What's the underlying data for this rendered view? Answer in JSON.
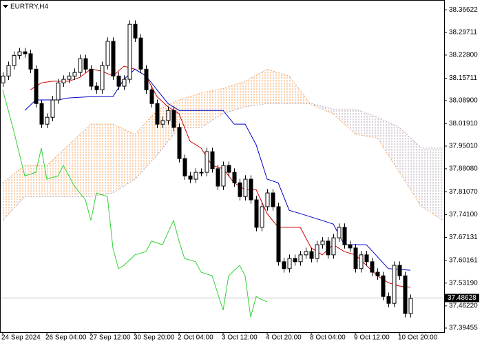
{
  "chart_data": {
    "type": "candlestick",
    "title": "EURTRY,H4",
    "categories": [
      "24 Sep 2024",
      null,
      null,
      null,
      null,
      null,
      null,
      null,
      "26 Sep 04:00",
      null,
      null,
      null,
      null,
      null,
      null,
      null,
      "27 Sep 12:00",
      null,
      null,
      null,
      null,
      null,
      null,
      null,
      "30 Sep 20:00",
      null,
      null,
      null,
      null,
      null,
      null,
      null,
      "2 Oct 04:00",
      null,
      null,
      null,
      null,
      null,
      null,
      null,
      "3 Oct 12:00",
      null,
      null,
      null,
      null,
      null,
      null,
      null,
      "4 Oct 20:00",
      null,
      null,
      null,
      null,
      null,
      null,
      null,
      "8 Oct 04:00",
      null,
      null,
      null,
      null,
      null,
      null,
      null,
      "9 Oct 12:00",
      null,
      null,
      null,
      null,
      null,
      null,
      null,
      "10 Oct 20:00",
      null,
      null
    ],
    "open": [
      38.143,
      38.164,
      38.196,
      38.227,
      38.238,
      38.232,
      38.185,
      38.08,
      38.017,
      38.038,
      38.091,
      38.143,
      38.154,
      38.164,
      38.175,
      38.217,
      38.185,
      38.133,
      38.122,
      38.196,
      38.27,
      38.164,
      38.133,
      38.154,
      38.322,
      38.28,
      38.185,
      38.122,
      38.08,
      38.017,
      38.028,
      38.059,
      38.007,
      37.912,
      37.859,
      37.849,
      37.87,
      37.87,
      37.933,
      37.881,
      37.828,
      37.891,
      37.87,
      37.838,
      37.796,
      37.849,
      37.786,
      37.702,
      37.765,
      37.807,
      37.765,
      37.597,
      37.576,
      37.607,
      37.597,
      37.618,
      37.628,
      37.607,
      37.649,
      37.66,
      37.618,
      37.67,
      37.702,
      37.649,
      37.639,
      37.576,
      37.618,
      37.597,
      37.565,
      37.554,
      37.491,
      37.47,
      37.586,
      37.554,
      37.439
    ],
    "high": [
      38.176,
      38.208,
      38.239,
      38.25,
      38.25,
      38.244,
      38.197,
      38.092,
      38.05,
      38.103,
      38.155,
      38.166,
      38.176,
      38.187,
      38.229,
      38.229,
      38.197,
      38.145,
      38.208,
      38.282,
      38.282,
      38.176,
      38.166,
      38.334,
      38.334,
      38.292,
      38.197,
      38.134,
      38.092,
      38.04,
      38.071,
      38.071,
      38.019,
      37.924,
      37.871,
      37.882,
      37.882,
      37.945,
      37.945,
      37.893,
      37.903,
      37.903,
      37.882,
      37.85,
      37.861,
      37.861,
      37.798,
      37.777,
      37.819,
      37.819,
      37.777,
      37.609,
      37.619,
      37.619,
      37.63,
      37.64,
      37.64,
      37.661,
      37.672,
      37.672,
      37.682,
      37.714,
      37.714,
      37.661,
      37.651,
      37.63,
      37.63,
      37.609,
      37.577,
      37.566,
      37.503,
      37.598,
      37.598,
      37.566,
      37.497
    ],
    "low": [
      38.131,
      38.152,
      38.184,
      38.215,
      38.22,
      38.173,
      38.068,
      38.005,
      38.005,
      38.026,
      38.079,
      38.131,
      38.142,
      38.152,
      38.163,
      38.173,
      38.121,
      38.11,
      38.11,
      38.184,
      38.152,
      38.121,
      38.121,
      38.142,
      38.268,
      38.173,
      38.11,
      38.068,
      38.005,
      38.005,
      38.016,
      37.995,
      37.9,
      37.847,
      37.837,
      37.837,
      37.858,
      37.858,
      37.869,
      37.816,
      37.816,
      37.858,
      37.826,
      37.784,
      37.784,
      37.774,
      37.69,
      37.69,
      37.753,
      37.753,
      37.585,
      37.564,
      37.564,
      37.585,
      37.585,
      37.606,
      37.595,
      37.595,
      37.637,
      37.606,
      37.606,
      37.658,
      37.637,
      37.627,
      37.564,
      37.564,
      37.585,
      37.553,
      37.542,
      37.479,
      37.458,
      37.458,
      37.542,
      37.427,
      37.427
    ],
    "close": [
      38.164,
      38.196,
      38.227,
      38.238,
      38.232,
      38.185,
      38.08,
      38.017,
      38.038,
      38.091,
      38.143,
      38.154,
      38.164,
      38.175,
      38.217,
      38.185,
      38.133,
      38.122,
      38.196,
      38.27,
      38.164,
      38.133,
      38.154,
      38.322,
      38.28,
      38.185,
      38.122,
      38.08,
      38.017,
      38.028,
      38.059,
      38.007,
      37.912,
      37.859,
      37.849,
      37.87,
      37.87,
      37.933,
      37.881,
      37.828,
      37.891,
      37.87,
      37.838,
      37.796,
      37.849,
      37.786,
      37.702,
      37.765,
      37.807,
      37.765,
      37.597,
      37.576,
      37.607,
      37.597,
      37.618,
      37.628,
      37.607,
      37.649,
      37.66,
      37.618,
      37.67,
      37.702,
      37.649,
      37.639,
      37.576,
      37.618,
      37.597,
      37.565,
      37.554,
      37.491,
      37.47,
      37.586,
      37.554,
      37.439,
      37.485
    ],
    "up_color": "#ffffff",
    "down_color": "#000000",
    "series": [
      {
        "color": "#d00000",
        "x": [
          5,
          7,
          9,
          12,
          14,
          16,
          18,
          20,
          22,
          24,
          26,
          28,
          30,
          32,
          34,
          36,
          38,
          40,
          42,
          44,
          46,
          48,
          50,
          52,
          54,
          56,
          58,
          60,
          62,
          64,
          66,
          68,
          70,
          72,
          74
        ],
        "values": [
          38.122,
          38.143,
          38.148,
          38.148,
          38.16,
          38.185,
          38.179,
          38.164,
          38.194,
          38.185,
          38.164,
          38.101,
          38.07,
          38.049,
          37.965,
          37.944,
          37.891,
          37.881,
          37.838,
          37.817,
          37.817,
          37.744,
          37.702,
          37.702,
          37.702,
          37.639,
          37.618,
          37.649,
          37.628,
          37.618,
          37.586,
          37.554,
          37.533,
          37.523,
          37.519
        ]
      },
      {
        "color": "#0000c8",
        "x": [
          4,
          6,
          10,
          12,
          16,
          20,
          22,
          24,
          26,
          28,
          30,
          32,
          36,
          40,
          42,
          44,
          46,
          48,
          50,
          52,
          54,
          58,
          60,
          62,
          66,
          70,
          74
        ],
        "values": [
          38.059,
          38.091,
          38.091,
          38.097,
          38.101,
          38.101,
          38.154,
          38.185,
          38.164,
          38.122,
          38.08,
          38.059,
          38.059,
          38.059,
          38.017,
          38.017,
          37.954,
          37.849,
          37.838,
          37.754,
          37.744,
          37.723,
          37.712,
          37.649,
          37.649,
          37.576,
          37.571
        ]
      },
      {
        "color": "#32d232",
        "x": [
          0,
          2,
          4,
          6,
          7,
          8,
          10,
          11,
          13,
          15,
          16,
          17,
          19,
          20,
          21,
          22,
          24,
          26,
          27,
          29,
          31,
          32,
          33,
          35,
          36,
          38,
          40,
          41,
          43,
          44,
          45,
          46,
          47,
          48
        ],
        "values": [
          38.122,
          37.996,
          37.859,
          37.87,
          37.944,
          37.849,
          37.859,
          37.891,
          37.828,
          37.786,
          37.723,
          37.807,
          37.796,
          37.639,
          37.576,
          37.586,
          37.618,
          37.628,
          37.66,
          37.649,
          37.723,
          37.66,
          37.607,
          37.597,
          37.565,
          37.554,
          37.449,
          37.554,
          37.586,
          37.554,
          37.428,
          37.491,
          37.481,
          37.475
        ]
      }
    ],
    "cloud": {
      "x": [
        0,
        4,
        8,
        12,
        16,
        20,
        24,
        28,
        32,
        36,
        40,
        44,
        48,
        52,
        56,
        60,
        64,
        68,
        72,
        76,
        80
      ],
      "a": [
        37.838,
        37.891,
        37.891,
        37.954,
        38.017,
        38.017,
        37.986,
        38.059,
        38.091,
        38.112,
        38.126,
        38.148,
        38.185,
        38.164,
        38.076,
        38.049,
        37.986,
        37.975,
        37.87,
        37.765,
        37.723
      ],
      "b": [
        37.723,
        37.796,
        37.796,
        37.796,
        37.796,
        37.807,
        37.849,
        37.922,
        38.007,
        38.007,
        38.049,
        38.07,
        38.08,
        38.08,
        38.08,
        38.063,
        38.063,
        38.038,
        38.007,
        37.944,
        37.944
      ],
      "a_color": "#f4a460",
      "b_color": "#b8a8b8"
    },
    "ylim": [
      37.382,
      38.394
    ],
    "yticks": [
      38.36622,
      38.29711,
      {
        "value": 38.228,
        "label": "38.22800"
      },
      38.15711,
      {
        "value": 38.089,
        "label": "38.08900"
      },
      {
        "value": 38.0191,
        "label": "38.01910"
      },
      {
        "value": 37.9501,
        "label": "37.95010"
      },
      {
        "value": 37.8808,
        "label": "37.88080"
      },
      {
        "value": 37.8107,
        "label": "37.81070"
      },
      {
        "value": 37.741,
        "label": "37.74100"
      },
      37.67131,
      37.60161,
      {
        "value": 37.5319,
        "label": "37.53190"
      },
      {
        "value": 37.4622,
        "label": "37.46220"
      },
      37.39455
    ],
    "current_price": 37.48628,
    "current_price_color": "#c0c0c0",
    "grid": false
  }
}
